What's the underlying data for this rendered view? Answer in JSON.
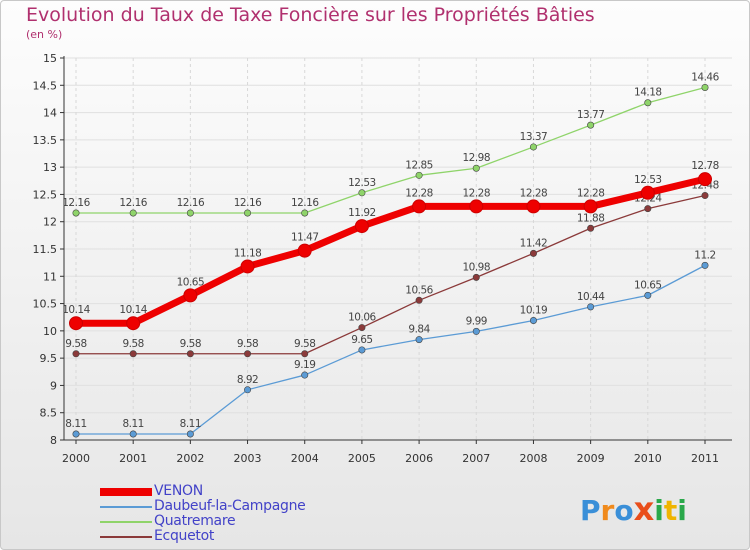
{
  "chart_data": {
    "type": "line",
    "title": "Evolution du Taux de Taxe Foncière sur les Propriétés Bâties",
    "ylabel": "(en %)",
    "xlabel": "",
    "categories": [
      "2000",
      "2001",
      "2002",
      "2003",
      "2004",
      "2005",
      "2006",
      "2007",
      "2008",
      "2009",
      "2010",
      "2011"
    ],
    "ylim": [
      8,
      15
    ],
    "yticks": [
      "8",
      "8.5",
      "9",
      "9.5",
      "10",
      "10.5",
      "11",
      "11.5",
      "12",
      "12.5",
      "13",
      "13.5",
      "14",
      "14.5",
      "15"
    ],
    "series": [
      {
        "name": "VENON",
        "color": "#ee0000",
        "values": [
          10.14,
          10.14,
          10.65,
          11.18,
          11.47,
          11.92,
          12.28,
          12.28,
          12.28,
          12.28,
          12.53,
          12.78
        ],
        "labels": [
          "10.14",
          "10.14",
          "10.65",
          "11.18",
          "11.47",
          "11.92",
          "12.28",
          "12.28",
          "12.28",
          "12.28",
          "12.53",
          "12.78"
        ]
      },
      {
        "name": "Daubeuf-la-Campagne",
        "color": "#5b9bd5",
        "values": [
          8.11,
          8.11,
          8.11,
          8.92,
          9.19,
          9.65,
          9.84,
          9.99,
          10.19,
          10.44,
          10.65,
          11.2
        ],
        "labels": [
          "8.11",
          "8.11",
          "8.11",
          "8.92",
          "9.19",
          "9.65",
          "9.84",
          "9.99",
          "10.19",
          "10.44",
          "10.65",
          "11.2"
        ]
      },
      {
        "name": "Quatremare",
        "color": "#8fd46a",
        "values": [
          12.16,
          12.16,
          12.16,
          12.16,
          12.16,
          12.53,
          12.85,
          12.98,
          13.37,
          13.77,
          14.18,
          14.46
        ],
        "labels": [
          "12.16",
          "12.16",
          "12.16",
          "12.16",
          "12.16",
          "12.53",
          "12.85",
          "12.98",
          "13.37",
          "13.77",
          "14.18",
          "14.46"
        ]
      },
      {
        "name": "Ecquetot",
        "color": "#8b3a3a",
        "values": [
          9.58,
          9.58,
          9.58,
          9.58,
          9.58,
          10.06,
          10.56,
          10.98,
          11.42,
          11.88,
          12.24,
          12.48
        ],
        "labels": [
          "9.58",
          "9.58",
          "9.58",
          "9.58",
          "9.58",
          "10.06",
          "10.56",
          "10.98",
          "11.42",
          "11.88",
          "12.24",
          "12.48"
        ]
      }
    ]
  },
  "logo": {
    "letters": [
      "P",
      "r",
      "o",
      "x",
      "i",
      "t",
      "i"
    ],
    "colors": [
      "#3a8fd8",
      "#f08a1c",
      "#3a8fd8",
      "#e94e1b",
      "#2aa84a",
      "#f0b400",
      "#2aa84a"
    ]
  }
}
